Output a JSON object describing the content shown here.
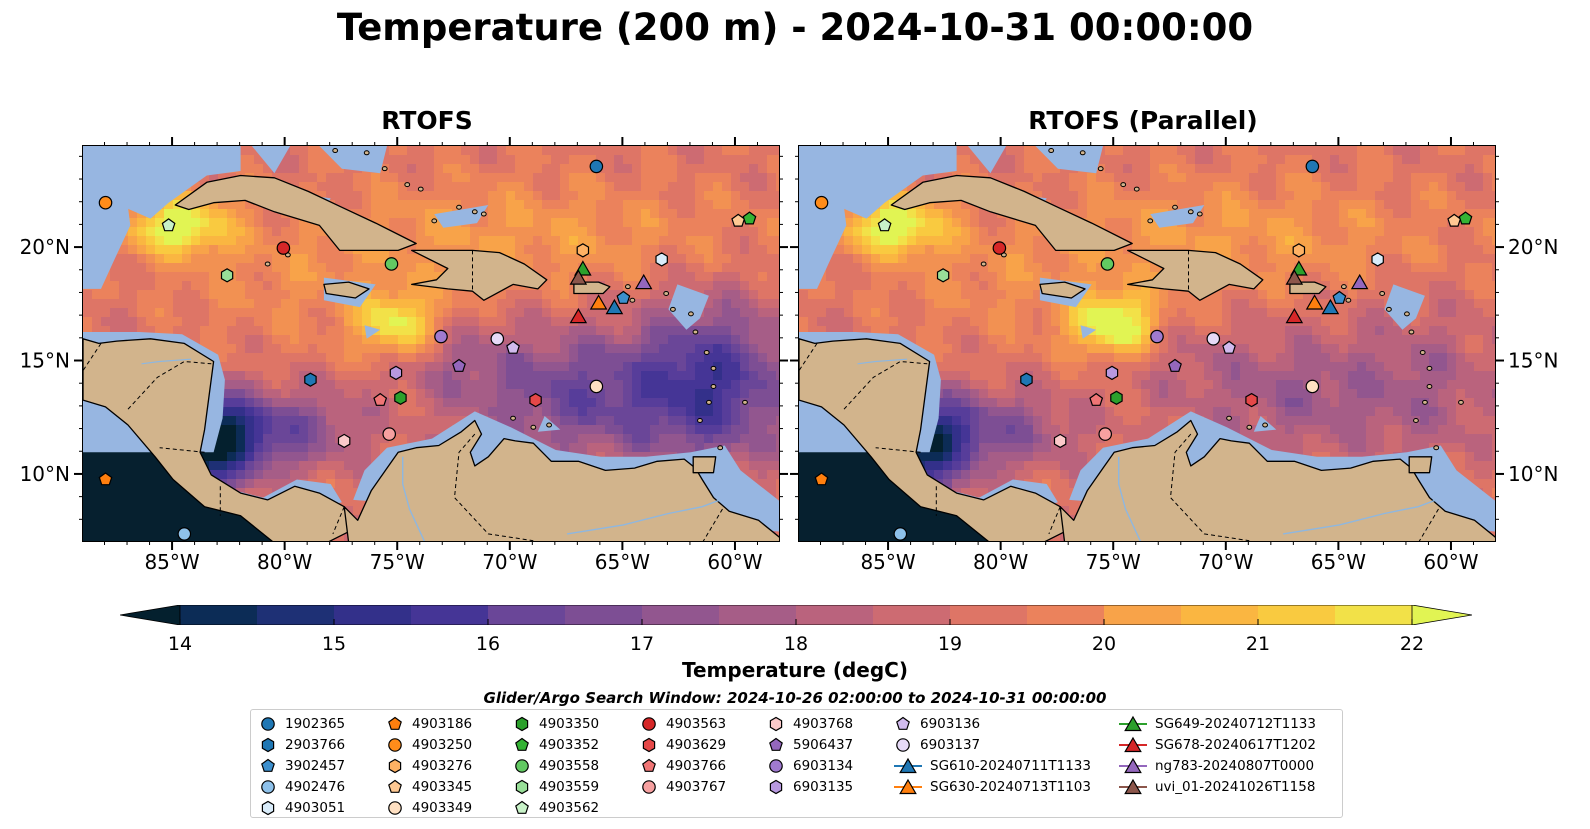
{
  "title": "Temperature (200 m) - 2024-10-31 00:00:00",
  "panels": [
    {
      "title": "RTOFS"
    },
    {
      "title": "RTOFS (Parallel)"
    }
  ],
  "map": {
    "lon_range": [
      -89,
      -58
    ],
    "lat_range": [
      7,
      24.5
    ],
    "lon_ticks": [
      "85°W",
      "80°W",
      "75°W",
      "70°W",
      "65°W",
      "60°W"
    ],
    "lat_ticks": [
      "20°N",
      "15°N",
      "10°N"
    ],
    "colors": {
      "land": "#d2b48c",
      "shelf": "#97b6e1",
      "deep_pacific": "#06202f"
    }
  },
  "colorbar": {
    "label": "Temperature (degC)",
    "ticks": [
      "14",
      "15",
      "16",
      "17",
      "18",
      "19",
      "20",
      "21",
      "22"
    ],
    "colors": [
      "#04202e",
      "#0c2c56",
      "#1e3075",
      "#33308a",
      "#453596",
      "#573d9a",
      "#6a4698",
      "#7d4e94",
      "#92568f",
      "#a65d87",
      "#ba637d",
      "#cd6b72",
      "#de7566",
      "#eb825c",
      "#f29152",
      "#f8a349",
      "#fab641",
      "#f9ca40",
      "#f2e148",
      "#e1f453"
    ]
  },
  "legend": {
    "title": "Glider/Argo Search Window: 2024-10-26 02:00:00 to 2024-10-31 00:00:00",
    "items": [
      {
        "label": "1902365",
        "marker": "circle",
        "color": "#1f77b4"
      },
      {
        "label": "2903766",
        "marker": "hexagon",
        "color": "#1f77b4"
      },
      {
        "label": "3902457",
        "marker": "pentagon",
        "color": "#3c8fcd"
      },
      {
        "label": "4902476",
        "marker": "circle",
        "color": "#8ec1ea"
      },
      {
        "label": "4903051",
        "marker": "hexagon",
        "color": "#d9ecfa"
      },
      {
        "label": "4903186",
        "marker": "pentagon",
        "color": "#ff7f0e"
      },
      {
        "label": "4903250",
        "marker": "circle",
        "color": "#ff8c1a"
      },
      {
        "label": "4903276",
        "marker": "hexagon",
        "color": "#ffb264"
      },
      {
        "label": "4903345",
        "marker": "pentagon",
        "color": "#ffc993"
      },
      {
        "label": "4903349",
        "marker": "circle",
        "color": "#ffe0c2"
      },
      {
        "label": "4903350",
        "marker": "hexagon",
        "color": "#2ca02c"
      },
      {
        "label": "4903352",
        "marker": "pentagon",
        "color": "#34b334"
      },
      {
        "label": "4903558",
        "marker": "circle",
        "color": "#62c962"
      },
      {
        "label": "4903559",
        "marker": "hexagon",
        "color": "#98de98"
      },
      {
        "label": "4903562",
        "marker": "pentagon",
        "color": "#c8f2c8"
      },
      {
        "label": "4903563",
        "marker": "circle",
        "color": "#d62728"
      },
      {
        "label": "4903629",
        "marker": "hexagon",
        "color": "#e54848"
      },
      {
        "label": "4903766",
        "marker": "pentagon",
        "color": "#f07575"
      },
      {
        "label": "4903767",
        "marker": "circle",
        "color": "#f6a0a0"
      },
      {
        "label": "4903768",
        "marker": "hexagon",
        "color": "#fbcaca"
      },
      {
        "label": "5906437",
        "marker": "pentagon",
        "color": "#9467bd"
      },
      {
        "label": "6903134",
        "marker": "circle",
        "color": "#a07ad0"
      },
      {
        "label": "6903135",
        "marker": "hexagon",
        "color": "#b899e0"
      },
      {
        "label": "6903136",
        "marker": "pentagon",
        "color": "#d1bbee"
      },
      {
        "label": "6903137",
        "marker": "circle",
        "color": "#e6daf7"
      },
      {
        "label": "SG610-20240711T1133",
        "marker": "triangle",
        "color": "#1f77b4"
      },
      {
        "label": "SG630-20240713T1103",
        "marker": "triangle",
        "color": "#ff7f0e"
      },
      {
        "label": "SG649-20240712T1133",
        "marker": "triangle",
        "color": "#2ca02c"
      },
      {
        "label": "SG678-20240617T1202",
        "marker": "triangle",
        "color": "#d62728"
      },
      {
        "label": "ng783-20240807T0000",
        "marker": "triangle",
        "color": "#9467bd"
      },
      {
        "label": "uvi_01-20241026T1158",
        "marker": "triangle",
        "color": "#8c564b"
      }
    ]
  },
  "observations": [
    {
      "id": "1902365",
      "lon": -66.2,
      "lat": 23.6
    },
    {
      "id": "2903766",
      "lon": -78.9,
      "lat": 14.2
    },
    {
      "id": "3902457",
      "lon": -65.0,
      "lat": 17.8
    },
    {
      "id": "4902476",
      "lon": -84.5,
      "lat": 7.4
    },
    {
      "id": "4903051",
      "lon": -63.3,
      "lat": 19.5
    },
    {
      "id": "4903186",
      "lon": -88.0,
      "lat": 9.8
    },
    {
      "id": "4903250",
      "lon": -88.0,
      "lat": 22.0
    },
    {
      "id": "4903276",
      "lon": -66.8,
      "lat": 19.9
    },
    {
      "id": "4903345",
      "lon": -59.9,
      "lat": 21.2
    },
    {
      "id": "4903349",
      "lon": -66.2,
      "lat": 13.9
    },
    {
      "id": "4903350",
      "lon": -74.9,
      "lat": 13.4
    },
    {
      "id": "4903352",
      "lon": -59.4,
      "lat": 21.3
    },
    {
      "id": "4903558",
      "lon": -75.3,
      "lat": 19.3
    },
    {
      "id": "4903559",
      "lon": -82.6,
      "lat": 18.8
    },
    {
      "id": "4903562",
      "lon": -85.2,
      "lat": 21.0
    },
    {
      "id": "4903563",
      "lon": -80.1,
      "lat": 20.0
    },
    {
      "id": "4903629",
      "lon": -68.9,
      "lat": 13.3
    },
    {
      "id": "4903766",
      "lon": -75.8,
      "lat": 13.3
    },
    {
      "id": "4903767",
      "lon": -75.4,
      "lat": 11.8
    },
    {
      "id": "4903768",
      "lon": -77.4,
      "lat": 11.5
    },
    {
      "id": "5906437",
      "lon": -72.3,
      "lat": 14.8
    },
    {
      "id": "6903134",
      "lon": -73.1,
      "lat": 16.1
    },
    {
      "id": "6903135",
      "lon": -75.1,
      "lat": 14.5
    },
    {
      "id": "6903136",
      "lon": -69.9,
      "lat": 15.6
    },
    {
      "id": "6903137",
      "lon": -70.6,
      "lat": 16.0
    },
    {
      "id": "SG610-20240711T1133",
      "lon": -65.4,
      "lat": 17.4
    },
    {
      "id": "SG630-20240713T1103",
      "lon": -66.1,
      "lat": 17.6
    },
    {
      "id": "SG649-20240712T1133",
      "lon": -66.8,
      "lat": 19.1
    },
    {
      "id": "SG678-20240617T1202",
      "lon": -67.0,
      "lat": 17.0
    },
    {
      "id": "ng783-20240807T0000",
      "lon": -64.1,
      "lat": 18.5
    },
    {
      "id": "uvi_01-20241026T1158",
      "lon": -67.0,
      "lat": 18.7
    }
  ]
}
